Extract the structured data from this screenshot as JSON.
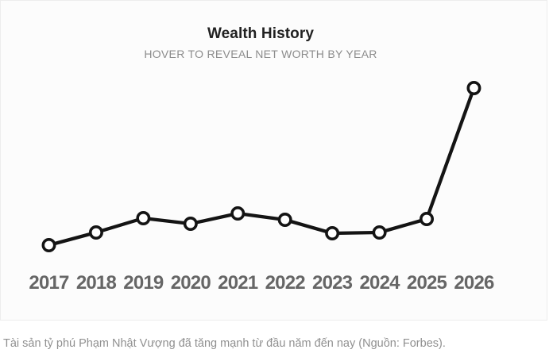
{
  "chart": {
    "title": "Wealth History",
    "subtitle": "HOVER TO REVEAL NET WORTH BY YEAR"
  },
  "caption": {
    "text": "Tài sản tỷ phú Phạm Nhật Vượng đã tăng mạnh từ đầu năm đến nay (Nguồn: Forbes)."
  },
  "chart_data": {
    "type": "line",
    "title": "Wealth History",
    "subtitle": "HOVER TO REVEAL NET WORTH BY YEAR",
    "categories": [
      "2017",
      "2018",
      "2019",
      "2020",
      "2021",
      "2022",
      "2023",
      "2024",
      "2025",
      "2026"
    ],
    "series": [
      {
        "name": "Net worth by year (numeric values hidden until hover)",
        "values_relative": [
          32,
          48,
          66,
          59,
          72,
          64,
          47,
          48,
          65,
          230
        ]
      }
    ],
    "xlabel": "",
    "ylabel": "",
    "value_axis_visible": false,
    "value_labels_visible": false,
    "grid": false,
    "legend": false,
    "marker": "open-circle",
    "line_color": "#141414",
    "marker_fill": "#ffffff",
    "tick_label_color": "#666666",
    "background_color": "#fcfcfc",
    "border_color": "#ededed"
  }
}
